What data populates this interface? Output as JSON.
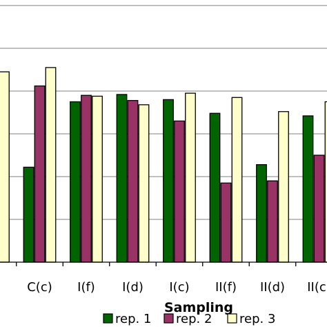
{
  "chart_data": {
    "type": "bar",
    "xlabel": "Sampling",
    "categories": [
      ")",
      "C(c)",
      "I(f)",
      "I(d)",
      "I(c)",
      "II(f)",
      "II(d)",
      "II(c)"
    ],
    "ylim": [
      0,
      60
    ],
    "grid": true,
    "legend_position": "bottom",
    "series": [
      {
        "name": "rep. 1",
        "color": "#006400",
        "values": [
          null,
          22.2,
          37.5,
          39.2,
          38.0,
          34.8,
          22.8,
          34.2
        ]
      },
      {
        "name": "rep. 2",
        "color": "#993366",
        "values": [
          null,
          41.2,
          39.0,
          37.8,
          33.0,
          18.5,
          19.0,
          25.0
        ]
      },
      {
        "name": "rep. 3",
        "color": "#ffffcc",
        "values": [
          44.5,
          45.5,
          38.8,
          36.8,
          39.5,
          38.5,
          35.2,
          37.5
        ]
      }
    ]
  }
}
